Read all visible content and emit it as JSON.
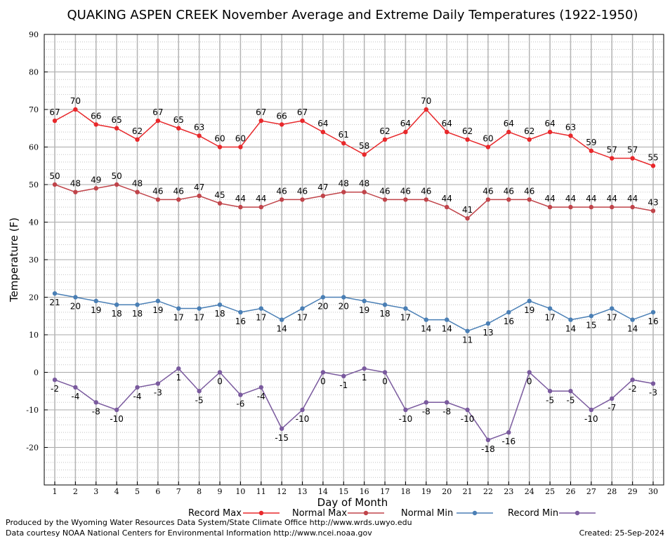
{
  "chart_data": {
    "type": "line",
    "title": "QUAKING ASPEN CREEK November Average and Extreme Daily Temperatures (1922-1950)",
    "xlabel": "Day of Month",
    "ylabel": "Temperature (F)",
    "ylim": [
      -30,
      90
    ],
    "yticks": [
      -20,
      -10,
      0,
      10,
      20,
      30,
      40,
      50,
      60,
      70,
      80,
      90
    ],
    "x": [
      1,
      2,
      3,
      4,
      5,
      6,
      7,
      8,
      9,
      10,
      11,
      12,
      13,
      14,
      15,
      16,
      17,
      18,
      19,
      20,
      21,
      22,
      23,
      24,
      25,
      26,
      27,
      28,
      29,
      30
    ],
    "grid": true,
    "legend_position": "bottom",
    "series": [
      {
        "name": "Record Max",
        "color": "#e8282b",
        "values": [
          67,
          70,
          66,
          65,
          62,
          67,
          65,
          63,
          60,
          60,
          67,
          66,
          67,
          64,
          61,
          58,
          62,
          64,
          70,
          64,
          62,
          60,
          64,
          62,
          64,
          63,
          59,
          57,
          57,
          55
        ]
      },
      {
        "name": "Normal Max",
        "color": "#c0444a",
        "values": [
          50,
          48,
          49,
          50,
          48,
          46,
          46,
          47,
          45,
          44,
          44,
          46,
          46,
          47,
          48,
          48,
          46,
          46,
          46,
          44,
          41,
          46,
          46,
          46,
          44,
          44,
          44,
          44,
          44,
          43
        ]
      },
      {
        "name": "Normal Min",
        "color": "#4a7fb5",
        "values": [
          21,
          20,
          19,
          18,
          18,
          19,
          17,
          17,
          18,
          16,
          17,
          14,
          17,
          20,
          20,
          19,
          18,
          17,
          14,
          14,
          11,
          13,
          16,
          19,
          17,
          14,
          15,
          17,
          14,
          16
        ]
      },
      {
        "name": "Record Min",
        "color": "#7a5a9e",
        "values": [
          -2,
          -4,
          -8,
          -10,
          -4,
          -3,
          1,
          -5,
          0,
          -6,
          -4,
          -15,
          -10,
          0,
          -1,
          1,
          0,
          -10,
          -8,
          -8,
          -10,
          -18,
          -16,
          0,
          -5,
          -5,
          -10,
          -7,
          -2,
          -3
        ]
      }
    ]
  },
  "footer": {
    "produced_by": "Produced by the Wyoming Water Resources Data System/State Climate Office http://www.wrds.uwyo.edu",
    "courtesy": "Data courtesy NOAA National Centers for Environmental Information http://www.ncei.noaa.gov",
    "created": "Created:  25-Sep-2024"
  }
}
